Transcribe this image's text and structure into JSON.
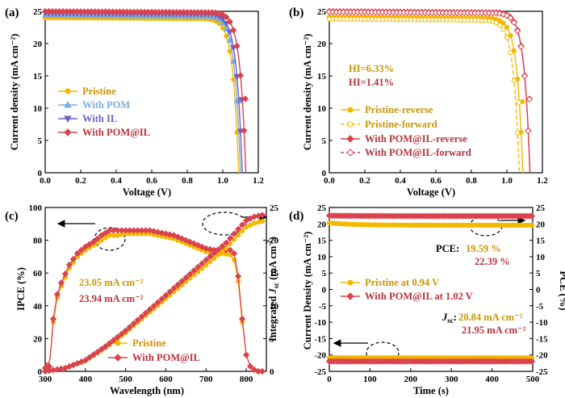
{
  "colors": {
    "pristine": "#f5b800",
    "pom": "#7aaedc",
    "il": "#6f5fc7",
    "pomil": "#d9424f",
    "pristine_text": "#c89600",
    "pomil_text": "#b8323e"
  },
  "chart_data": [
    {
      "id": "a",
      "panel_label": "(a)",
      "type": "line",
      "xlabel": "Voltage (V)",
      "ylabel": "Current density (mA cm⁻²)",
      "xlim": [
        0.0,
        1.2
      ],
      "ylim": [
        0,
        25
      ],
      "xticks": [
        "0.0",
        "0.2",
        "0.4",
        "0.6",
        "0.8",
        "1.0",
        "1.2"
      ],
      "yticks": [
        "0",
        "5",
        "10",
        "15",
        "20",
        "25"
      ],
      "legend_position": "bottom-left",
      "series": [
        {
          "name": "Pristine",
          "color_key": "pristine",
          "jsc": 24.0,
          "voc": 1.09,
          "knee": 0.9
        },
        {
          "name": "With POM",
          "color_key": "pom",
          "jsc": 24.4,
          "voc": 1.1,
          "knee": 0.92
        },
        {
          "name": "With IL",
          "color_key": "il",
          "jsc": 24.7,
          "voc": 1.11,
          "knee": 0.93
        },
        {
          "name": "With POM@IL",
          "color_key": "pomil",
          "jsc": 25.0,
          "voc": 1.13,
          "knee": 0.95
        }
      ]
    },
    {
      "id": "b",
      "panel_label": "(b)",
      "type": "line",
      "xlabel": "Voltage (V)",
      "ylabel": "Current density (mA cm⁻²)",
      "xlim": [
        0.0,
        1.2
      ],
      "ylim": [
        0,
        25
      ],
      "xticks": [
        "0.0",
        "0.2",
        "0.4",
        "0.6",
        "0.8",
        "1.0",
        "1.2"
      ],
      "yticks": [
        "0",
        "5",
        "10",
        "15",
        "20",
        "25"
      ],
      "legend_position": "bottom-left",
      "annotations": [
        "HI=6.33%",
        "HI=1.41%"
      ],
      "series": [
        {
          "name": "Pristine-reverse",
          "color_key": "pristine",
          "jsc": 24.1,
          "voc": 1.09,
          "knee": 0.9,
          "dashed": false
        },
        {
          "name": "Pristine-forward",
          "color_key": "pristine",
          "jsc": 23.8,
          "voc": 1.07,
          "knee": 0.82,
          "dashed": true
        },
        {
          "name": "With POM@IL-reverse",
          "color_key": "pomil",
          "jsc": 25.0,
          "voc": 1.13,
          "knee": 0.95,
          "dashed": false
        },
        {
          "name": "With POM@IL-forward",
          "color_key": "pomil",
          "jsc": 24.9,
          "voc": 1.13,
          "knee": 0.93,
          "dashed": true
        }
      ]
    },
    {
      "id": "c",
      "panel_label": "(c)",
      "type": "line",
      "xlabel": "Wavelength (nm)",
      "ylabel": "IPCE (%)",
      "ylabel_right": "Integrated Jsc (mA cm⁻²)",
      "xlim": [
        300,
        850
      ],
      "ylim": [
        0,
        100
      ],
      "ylim_right": [
        0,
        25
      ],
      "xticks": [
        "300",
        "400",
        "500",
        "600",
        "700",
        "800"
      ],
      "yticks": [
        "0",
        "20",
        "40",
        "60",
        "80",
        "100"
      ],
      "yticks_right": [
        "0",
        "5",
        "10",
        "15",
        "20",
        "25"
      ],
      "legend_position": "bottom-center",
      "annotations": [
        "23.05 mA cm⁻²",
        "23.94 mA cm⁻²"
      ],
      "ipce": {
        "wavelength": [
          300,
          305,
          310,
          315,
          320,
          330,
          340,
          360,
          380,
          400,
          420,
          440,
          460,
          480,
          500,
          520,
          540,
          560,
          580,
          600,
          620,
          640,
          660,
          680,
          700,
          720,
          740,
          760,
          770,
          780,
          790,
          800,
          810,
          820,
          830,
          840,
          850
        ],
        "series": [
          {
            "name": "Pristine",
            "color_key": "pristine",
            "values": [
              2,
              5,
              3,
              15,
              30,
              45,
              52,
              63,
              70,
              74,
              77,
              80,
              83,
              83,
              84,
              84,
              84,
              84,
              83,
              82,
              81,
              79,
              77,
              75,
              73,
              72,
              72,
              71,
              68,
              55,
              30,
              10,
              3,
              1,
              0,
              0,
              0
            ]
          },
          {
            "name": "With POM@IL",
            "color_key": "pomil",
            "values": [
              2,
              6,
              3,
              16,
              32,
              47,
              54,
              65,
              72,
              76,
              79,
              83,
              86,
              86,
              86,
              86,
              86,
              86,
              85,
              84,
              83,
              81,
              79,
              77,
              75,
              74,
              74,
              74,
              72,
              58,
              32,
              10,
              3,
              1,
              0,
              0,
              0
            ]
          }
        ]
      },
      "integrated_jsc": {
        "wavelength": [
          300,
          350,
          400,
          450,
          500,
          550,
          600,
          650,
          700,
          750,
          780,
          800,
          820,
          850
        ],
        "series": [
          {
            "name": "Pristine",
            "color_key": "pristine",
            "values": [
              0,
              0.5,
              1.6,
              3.6,
              5.9,
              8.5,
              11.1,
              13.7,
              16.2,
              18.8,
              20.8,
              22.0,
              22.6,
              23.05
            ]
          },
          {
            "name": "With POM@IL",
            "color_key": "pomil",
            "values": [
              0,
              0.5,
              1.7,
              3.8,
              6.2,
              8.9,
              11.6,
              14.3,
              17.0,
              19.6,
              21.7,
              23.0,
              23.6,
              23.94
            ]
          }
        ]
      }
    },
    {
      "id": "d",
      "panel_label": "(d)",
      "type": "line",
      "xlabel": "Time (s)",
      "ylabel": "Current Density (mA cm⁻²)",
      "ylabel_right": "PCE (%)",
      "xlim": [
        0,
        500
      ],
      "ylim": [
        -25,
        25
      ],
      "ylim_right": [
        -25,
        25
      ],
      "xticks": [
        "0",
        "100",
        "200",
        "300",
        "400",
        "500"
      ],
      "yticks": [
        "-25",
        "-20",
        "-15",
        "-10",
        "-5",
        "0",
        "5",
        "10",
        "15",
        "20",
        "25"
      ],
      "yticks_right": [
        "-25",
        "-20",
        "-15",
        "-10",
        "-5",
        "0",
        "5",
        "10",
        "15",
        "20",
        "25"
      ],
      "legend_position": "center-left",
      "annotations": [
        "PCE:",
        "19.59 %",
        "22.39 %",
        "Jsc:",
        "20.84 mA cm⁻²",
        "21.95 mA cm⁻²"
      ],
      "series": [
        {
          "name": "Pristine at 0.94 V",
          "color_key": "pristine",
          "current_density": -20.84,
          "pce": 19.59,
          "pce_start": 20.3
        },
        {
          "name": "With POM@IL at 1.02 V",
          "color_key": "pomil",
          "current_density": -21.95,
          "pce": 22.39,
          "pce_start": 22.5
        }
      ]
    }
  ]
}
